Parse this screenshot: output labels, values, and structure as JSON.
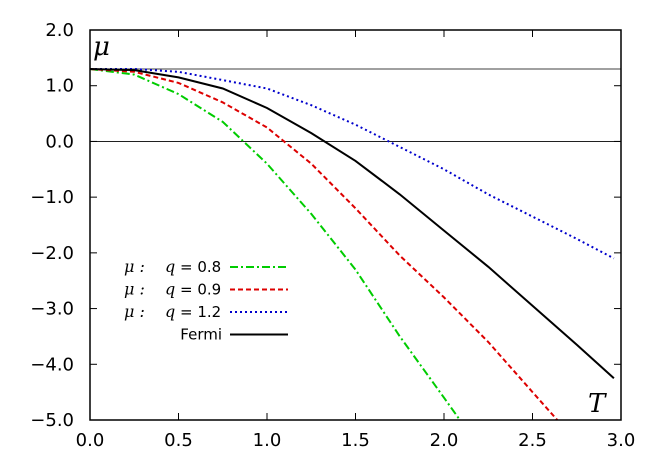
{
  "chart_data": {
    "type": "line",
    "xlabel": "T",
    "ylabel": "μ",
    "xlim": [
      0.0,
      3.0
    ],
    "ylim": [
      -5.0,
      2.0
    ],
    "x_ticks": [
      "0.0",
      "0.5",
      "1.0",
      "1.5",
      "2.0",
      "2.5",
      "3.0"
    ],
    "y_ticks": [
      "2.0",
      "1.0",
      "0.0",
      "−1.0",
      "−2.0",
      "−3.0",
      "−4.0",
      "−5.0"
    ],
    "reference_lines": [
      1.3,
      0.0
    ],
    "grid": false,
    "legend_position": "lower-left",
    "series": [
      {
        "name": "q = 0.8",
        "legend_prefix": "μ :",
        "legend_label": "q = 0.8",
        "color": "#00cc00",
        "dash": "dash-dot",
        "x": [
          0.0,
          0.25,
          0.5,
          0.75,
          1.0,
          1.25,
          1.5,
          1.75,
          2.0,
          2.09
        ],
        "y": [
          1.3,
          1.2,
          0.85,
          0.35,
          -0.4,
          -1.3,
          -2.3,
          -3.5,
          -4.6,
          -5.0
        ]
      },
      {
        "name": "q = 0.9",
        "legend_prefix": "μ :",
        "legend_label": "q = 0.9",
        "color": "#dd0000",
        "dash": "dashed",
        "x": [
          0.0,
          0.25,
          0.5,
          0.75,
          1.0,
          1.25,
          1.5,
          1.75,
          2.0,
          2.25,
          2.5,
          2.64
        ],
        "y": [
          1.3,
          1.25,
          1.05,
          0.7,
          0.25,
          -0.4,
          -1.2,
          -2.05,
          -2.8,
          -3.6,
          -4.5,
          -5.0
        ]
      },
      {
        "name": "q = 1.2",
        "legend_prefix": "μ :",
        "legend_label": "q = 1.2",
        "color": "#0000cc",
        "dash": "dotted",
        "x": [
          0.0,
          0.25,
          0.5,
          0.75,
          1.0,
          1.25,
          1.5,
          1.75,
          2.0,
          2.25,
          2.5,
          2.75,
          2.96
        ],
        "y": [
          1.3,
          1.3,
          1.25,
          1.1,
          0.95,
          0.65,
          0.3,
          -0.1,
          -0.5,
          -0.95,
          -1.35,
          -1.75,
          -2.1
        ]
      },
      {
        "name": "Fermi",
        "legend_prefix": "",
        "legend_label": "Fermi",
        "color": "#000000",
        "dash": "solid",
        "x": [
          0.0,
          0.25,
          0.5,
          0.75,
          1.0,
          1.25,
          1.5,
          1.75,
          2.0,
          2.25,
          2.5,
          2.75,
          2.96
        ],
        "y": [
          1.3,
          1.28,
          1.15,
          0.95,
          0.6,
          0.15,
          -0.35,
          -0.95,
          -1.6,
          -2.25,
          -2.95,
          -3.65,
          -4.25
        ]
      }
    ]
  }
}
